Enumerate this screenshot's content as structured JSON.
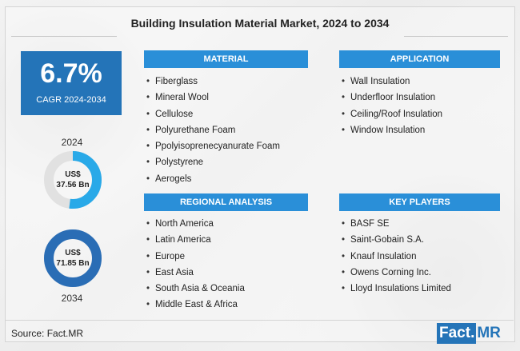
{
  "title": "Building Insulation Material Market, 2024 to 2034",
  "cagr": {
    "value": "6.7%",
    "label": "CAGR 2024-2034"
  },
  "start": {
    "year": "2024",
    "currency": "US$",
    "amount": "37.56 Bn",
    "share": 0.52
  },
  "end": {
    "year": "2034",
    "currency": "US$",
    "amount": "71.85 Bn",
    "share": 1.0
  },
  "panels": {
    "material": {
      "heading": "MATERIAL",
      "items": [
        "Fiberglass",
        "Mineral Wool",
        "Cellulose",
        "Polyurethane Foam",
        "Ppolyisoprenecyanurate Foam",
        "Polystyrene",
        "Aerogels"
      ]
    },
    "application": {
      "heading": "APPLICATION",
      "items": [
        "Wall Insulation",
        "Underfloor Insulation",
        "Ceiling/Roof Insulation",
        "Window Insulation"
      ]
    },
    "regional": {
      "heading": "REGIONAL ANALYSIS",
      "items": [
        "North America",
        "Latin America",
        "Europe",
        "East Asia",
        "South Asia & Oceania",
        "Middle East & Africa"
      ]
    },
    "players": {
      "heading": "KEY PLAYERS",
      "items": [
        "BASF SE",
        "Saint-Gobain S.A.",
        "Knauf Insulation",
        "Owens Corning Inc.",
        "Lloyd Insulations Limited"
      ]
    }
  },
  "source": "Source: Fact.MR",
  "logo": {
    "part1": "Fact.",
    "part2": "MR"
  },
  "colors": {
    "primary": "#2474b8",
    "header": "#2a8fd8",
    "ring_light": "#29a9e8",
    "ring_dark": "#2a6db5",
    "track": "#e1e1e1"
  }
}
